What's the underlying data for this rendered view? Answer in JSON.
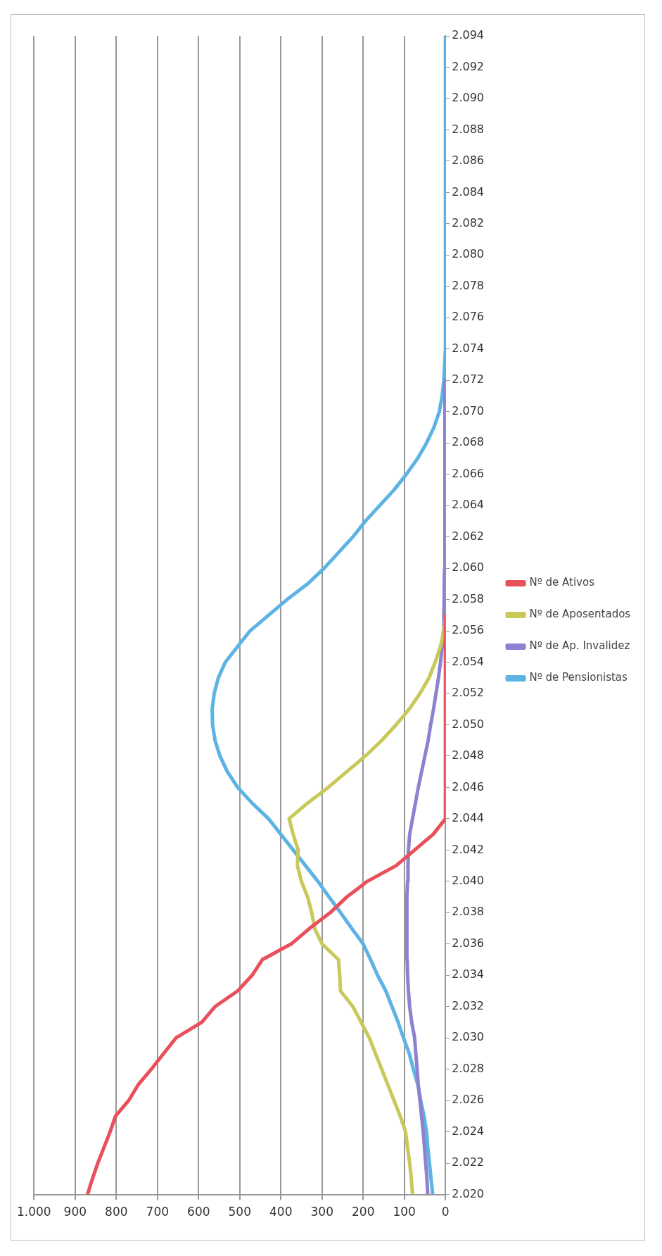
{
  "chart_data": {
    "type": "line",
    "series": [
      {
        "name": "Nº de Ativos",
        "color": "#e8505b",
        "x": [
          870,
          858,
          845,
          830,
          815,
          802,
          770,
          747,
          715,
          685,
          655,
          592,
          560,
          505,
          470,
          445,
          375,
          330,
          280,
          240,
          190,
          120,
          75,
          30,
          0,
          0,
          0,
          0,
          0,
          0,
          0,
          0,
          0,
          0,
          0,
          0,
          0,
          0
        ],
        "values": [
          2020,
          2021,
          2022,
          2023,
          2024,
          2025,
          2026,
          2027,
          2028,
          2029,
          2030,
          2031,
          2032,
          2033,
          2034,
          2035,
          2036,
          2037,
          2038,
          2039,
          2040,
          2041,
          2042,
          2043,
          2044,
          2045,
          2046,
          2047,
          2048,
          2049,
          2050,
          2051,
          2052,
          2053,
          2054,
          2055,
          2056,
          2057
        ]
      },
      {
        "name": "Nº de Aposentados",
        "color": "#c9c85a",
        "x": [
          80,
          83,
          87,
          92,
          97,
          110,
          125,
          140,
          155,
          170,
          185,
          205,
          225,
          255,
          257,
          260,
          300,
          318,
          325,
          335,
          350,
          360,
          358,
          370,
          380,
          335,
          285,
          240,
          195,
          155,
          120,
          88,
          62,
          40,
          25,
          12,
          4,
          0
        ],
        "values": [
          2020,
          2021,
          2022,
          2023,
          2024,
          2025,
          2026,
          2027,
          2028,
          2029,
          2030,
          2031,
          2032,
          2033,
          2034,
          2035,
          2036,
          2037,
          2038,
          2039,
          2040,
          2041,
          2042,
          2043,
          2044,
          2045,
          2046,
          2047,
          2048,
          2049,
          2050,
          2051,
          2052,
          2053,
          2054,
          2055,
          2056,
          2057
        ]
      },
      {
        "name": "Nº de Ap. Invalidez",
        "color": "#8c82d0",
        "x": [
          43,
          45,
          48,
          51,
          54,
          58,
          62,
          66,
          69,
          72,
          75,
          82,
          87,
          90,
          92,
          93,
          94,
          94,
          94,
          93,
          92,
          91,
          90,
          87,
          80,
          73,
          66,
          58,
          50,
          42,
          36,
          29,
          23,
          17,
          12,
          8,
          5,
          4,
          3,
          3,
          2,
          2,
          2,
          2,
          1,
          1,
          1,
          1,
          1,
          1,
          1,
          1,
          1
        ],
        "values": [
          2020,
          2021,
          2022,
          2023,
          2024,
          2025,
          2026,
          2027,
          2028,
          2029,
          2030,
          2031,
          2032,
          2033,
          2034,
          2035,
          2036,
          2037,
          2038,
          2039,
          2040,
          2041,
          2042,
          2043,
          2044,
          2045,
          2046,
          2047,
          2048,
          2049,
          2050,
          2051,
          2052,
          2053,
          2054,
          2055,
          2056,
          2057,
          2058,
          2059,
          2060,
          2061,
          2062,
          2063,
          2064,
          2065,
          2066,
          2067,
          2068,
          2069,
          2070,
          2071,
          2072
        ]
      },
      {
        "name": "Nº de Pensionistas",
        "color": "#5db3e4",
        "x": [
          31,
          35,
          39,
          43,
          46,
          52,
          60,
          67,
          78,
          88,
          102,
          115,
          130,
          145,
          165,
          182,
          200,
          228,
          255,
          283,
          310,
          340,
          370,
          400,
          430,
          470,
          505,
          530,
          548,
          560,
          566,
          567,
          562,
          552,
          535,
          505,
          475,
          430,
          385,
          335,
          295,
          260,
          225,
          195,
          160,
          125,
          95,
          68,
          46,
          28,
          15,
          8,
          4,
          2,
          0,
          0,
          0,
          0,
          0,
          0,
          0,
          0,
          0,
          0,
          0,
          0,
          0,
          0,
          0,
          0,
          0,
          0,
          0,
          0,
          0
        ],
        "values": [
          2020,
          2021,
          2022,
          2023,
          2024,
          2025,
          2026,
          2027,
          2028,
          2029,
          2030,
          2031,
          2032,
          2033,
          2034,
          2035,
          2036,
          2037,
          2038,
          2039,
          2040,
          2041,
          2042,
          2043,
          2044,
          2045,
          2046,
          2047,
          2048,
          2049,
          2050,
          2051,
          2052,
          2053,
          2054,
          2055,
          2056,
          2057,
          2058,
          2059,
          2060,
          2061,
          2062,
          2063,
          2064,
          2065,
          2066,
          2067,
          2068,
          2069,
          2070,
          2071,
          2072,
          2073,
          2074,
          2075,
          2076,
          2077,
          2078,
          2079,
          2080,
          2081,
          2082,
          2083,
          2084,
          2085,
          2086,
          2087,
          2088,
          2089,
          2090,
          2091,
          2092,
          2093,
          2094
        ]
      }
    ],
    "ylim": [
      2020,
      2094
    ],
    "yticks": [
      {
        "value": 2020,
        "label": "2.020"
      },
      {
        "value": 2022,
        "label": "2.022"
      },
      {
        "value": 2024,
        "label": "2.024"
      },
      {
        "value": 2026,
        "label": "2.026"
      },
      {
        "value": 2028,
        "label": "2.028"
      },
      {
        "value": 2030,
        "label": "2.030"
      },
      {
        "value": 2032,
        "label": "2.032"
      },
      {
        "value": 2034,
        "label": "2.034"
      },
      {
        "value": 2036,
        "label": "2.036"
      },
      {
        "value": 2038,
        "label": "2.038"
      },
      {
        "value": 2040,
        "label": "2.040"
      },
      {
        "value": 2042,
        "label": "2.042"
      },
      {
        "value": 2044,
        "label": "2.044"
      },
      {
        "value": 2046,
        "label": "2.046"
      },
      {
        "value": 2048,
        "label": "2.048"
      },
      {
        "value": 2050,
        "label": "2.050"
      },
      {
        "value": 2052,
        "label": "2.052"
      },
      {
        "value": 2054,
        "label": "2.054"
      },
      {
        "value": 2056,
        "label": "2.056"
      },
      {
        "value": 2058,
        "label": "2.058"
      },
      {
        "value": 2060,
        "label": "2.060"
      },
      {
        "value": 2062,
        "label": "2.062"
      },
      {
        "value": 2064,
        "label": "2.064"
      },
      {
        "value": 2066,
        "label": "2.066"
      },
      {
        "value": 2068,
        "label": "2.068"
      },
      {
        "value": 2070,
        "label": "2.070"
      },
      {
        "value": 2072,
        "label": "2.072"
      },
      {
        "value": 2074,
        "label": "2.074"
      },
      {
        "value": 2076,
        "label": "2.076"
      },
      {
        "value": 2078,
        "label": "2.078"
      },
      {
        "value": 2080,
        "label": "2.080"
      },
      {
        "value": 2082,
        "label": "2.082"
      },
      {
        "value": 2084,
        "label": "2.084"
      },
      {
        "value": 2086,
        "label": "2.086"
      },
      {
        "value": 2088,
        "label": "2.088"
      },
      {
        "value": 2090,
        "label": "2.090"
      },
      {
        "value": 2092,
        "label": "2.092"
      },
      {
        "value": 2094,
        "label": "2.094"
      }
    ],
    "xlim": [
      1000,
      0
    ],
    "xticks": [
      {
        "value": 1000,
        "label": "1.000"
      },
      900,
      800,
      700,
      600,
      500,
      400,
      300,
      200,
      100,
      0
    ],
    "grid": "x",
    "legend": "right",
    "marker": "none",
    "line_style": "solid"
  }
}
